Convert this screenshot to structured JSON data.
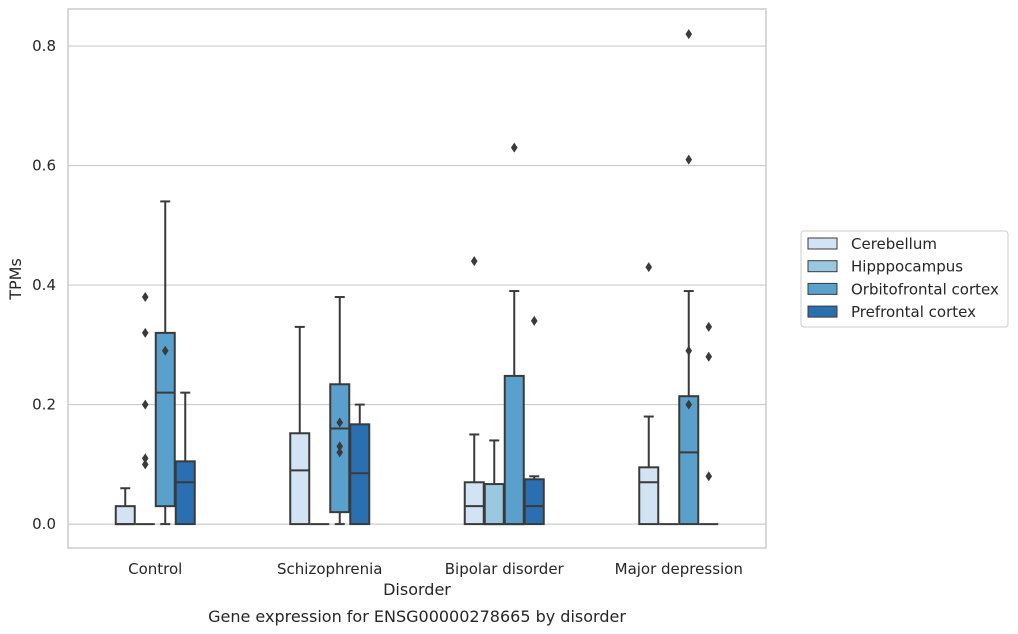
{
  "caption": "Gene expression for ENSG00000278665 by disorder",
  "chart_data": {
    "type": "box",
    "xlabel": "Disorder",
    "ylabel": "TPMs",
    "ylim": [
      -0.04,
      0.862
    ],
    "yticks": [
      0.0,
      0.2,
      0.4,
      0.6,
      0.8
    ],
    "ytick_labels": [
      "0.0",
      "0.2",
      "0.4",
      "0.6",
      "0.8"
    ],
    "grid": true,
    "legend_placement": "right",
    "categories": [
      "Control",
      "Schizophrenia",
      "Bipolar disorder",
      "Major depression"
    ],
    "series": [
      {
        "name": "Cerebellum",
        "color": "#d2e3f3",
        "boxes": [
          {
            "q1": 0.0,
            "median": 0.0,
            "q3": 0.03,
            "whisker_low": 0.0,
            "whisker_high": 0.06,
            "outliers": []
          },
          {
            "q1": 0.0,
            "median": 0.09,
            "q3": 0.152,
            "whisker_low": 0.0,
            "whisker_high": 0.33,
            "outliers": []
          },
          {
            "q1": 0.0,
            "median": 0.03,
            "q3": 0.07,
            "whisker_low": 0.0,
            "whisker_high": 0.15,
            "outliers": [
              0.44
            ]
          },
          {
            "q1": 0.0,
            "median": 0.07,
            "q3": 0.095,
            "whisker_low": 0.0,
            "whisker_high": 0.18,
            "outliers": [
              0.43
            ]
          }
        ]
      },
      {
        "name": "Hipppocampus",
        "color": "#9ac8e0",
        "boxes": [
          {
            "q1": 0.0,
            "median": 0.0,
            "q3": 0.0,
            "whisker_low": 0.0,
            "whisker_high": 0.0,
            "outliers": [
              0.38,
              0.32,
              0.2,
              0.11,
              0.1
            ]
          },
          {
            "q1": 0.0,
            "median": 0.0,
            "q3": 0.0,
            "whisker_low": 0.0,
            "whisker_high": 0.0,
            "outliers": []
          },
          {
            "q1": 0.0,
            "median": 0.0,
            "q3": 0.067,
            "whisker_low": 0.0,
            "whisker_high": 0.14,
            "outliers": []
          },
          {
            "q1": 0.0,
            "median": 0.0,
            "q3": 0.0,
            "whisker_low": 0.0,
            "whisker_high": 0.0,
            "outliers": []
          }
        ]
      },
      {
        "name": "Orbitofrontal cortex",
        "color": "#5aa0cd",
        "boxes": [
          {
            "q1": 0.03,
            "median": 0.22,
            "q3": 0.32,
            "whisker_low": 0.0,
            "whisker_high": 0.54,
            "outliers": [
              0.29
            ]
          },
          {
            "q1": 0.02,
            "median": 0.16,
            "q3": 0.234,
            "whisker_low": 0.0,
            "whisker_high": 0.38,
            "outliers": [
              0.17,
              0.13,
              0.12
            ]
          },
          {
            "q1": 0.0,
            "median": 0.0,
            "q3": 0.248,
            "whisker_low": 0.0,
            "whisker_high": 0.39,
            "outliers": [
              0.63
            ]
          },
          {
            "q1": 0.0,
            "median": 0.12,
            "q3": 0.214,
            "whisker_low": 0.0,
            "whisker_high": 0.39,
            "outliers": [
              0.82,
              0.61,
              0.29,
              0.2
            ]
          }
        ]
      },
      {
        "name": "Prefrontal cortex",
        "color": "#2a6fb0",
        "boxes": [
          {
            "q1": 0.0,
            "median": 0.07,
            "q3": 0.105,
            "whisker_low": 0.0,
            "whisker_high": 0.22,
            "outliers": []
          },
          {
            "q1": 0.0,
            "median": 0.085,
            "q3": 0.167,
            "whisker_low": 0.0,
            "whisker_high": 0.2,
            "outliers": []
          },
          {
            "q1": 0.0,
            "median": 0.03,
            "q3": 0.075,
            "whisker_low": 0.0,
            "whisker_high": 0.08,
            "outliers": [
              0.34
            ]
          },
          {
            "q1": 0.0,
            "median": 0.0,
            "q3": 0.0,
            "whisker_low": 0.0,
            "whisker_high": 0.0,
            "outliers": [
              0.33,
              0.28,
              0.08
            ]
          }
        ]
      }
    ]
  }
}
